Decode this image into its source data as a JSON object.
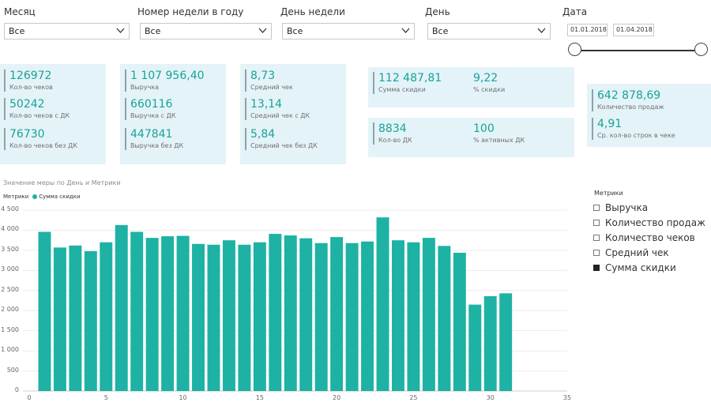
{
  "filters": {
    "month": {
      "label": "Месяц",
      "value": "Все"
    },
    "week": {
      "label": "Номер недели в году",
      "value": "Все"
    },
    "weekday": {
      "label": "День недели",
      "value": "Все"
    },
    "day": {
      "label": "День",
      "value": "Все"
    },
    "date": {
      "label": "Дата",
      "from": "01.01.2018",
      "to": "01.04.2018"
    }
  },
  "cards": {
    "checks": [
      {
        "value": "126972",
        "label": "Кол-во чеков"
      },
      {
        "value": "50242",
        "label": "Кол-во чеков с ДК"
      },
      {
        "value": "76730",
        "label": "Кол-во чеков без ДК"
      }
    ],
    "revenue": [
      {
        "value": "1 107 956,40",
        "label": "Выручка"
      },
      {
        "value": "660116",
        "label": "Выручка с ДК"
      },
      {
        "value": "447841",
        "label": "Выручка без ДК"
      }
    ],
    "avg_check": [
      {
        "value": "8,73",
        "label": "Средний чек"
      },
      {
        "value": "13,14",
        "label": "Средний чек с ДК"
      },
      {
        "value": "5,84",
        "label": "Средний чек без ДК"
      }
    ],
    "discount": [
      {
        "value": "112 487,81",
        "label": "Сумма скидки"
      },
      {
        "value": "9,22",
        "label": "% скидки"
      }
    ],
    "cards_dk": [
      {
        "value": "8834",
        "label": "Кол-во ДК"
      },
      {
        "value": "100",
        "label": "% активных ДК"
      }
    ],
    "sales": [
      {
        "value": "642 878,69",
        "label": "Количество продаж"
      },
      {
        "value": "4,91",
        "label": "Ср. кол-во строк в чеке"
      }
    ]
  },
  "chart": {
    "title": "Значение меры по День и Метрики",
    "legend_title": "Метрики",
    "legend_series": "Сумма скидки"
  },
  "metrics_legend": {
    "title": "Метрики",
    "items": [
      {
        "label": "Выручка",
        "checked": false
      },
      {
        "label": "Количество продаж",
        "checked": false
      },
      {
        "label": "Количество чеков",
        "checked": false
      },
      {
        "label": "Средний чек",
        "checked": false
      },
      {
        "label": "Сумма скидки",
        "checked": true
      }
    ]
  },
  "colors": {
    "accent": "#17a397",
    "bar": "#1db2a4",
    "card": "#e4f3f8"
  },
  "chart_data": {
    "type": "bar",
    "x": [
      1,
      2,
      3,
      4,
      5,
      6,
      7,
      8,
      9,
      10,
      11,
      12,
      13,
      14,
      15,
      16,
      17,
      18,
      19,
      20,
      21,
      22,
      23,
      24,
      25,
      26,
      27,
      28,
      29,
      30,
      31
    ],
    "series": [
      {
        "name": "Сумма скидки",
        "values": [
          3960,
          3570,
          3620,
          3480,
          3700,
          4130,
          3960,
          3810,
          3850,
          3860,
          3660,
          3640,
          3750,
          3640,
          3700,
          3910,
          3870,
          3800,
          3680,
          3830,
          3680,
          3720,
          4320,
          3750,
          3700,
          3810,
          3610,
          3440,
          2150,
          2360,
          2430
        ]
      }
    ],
    "ylim": [
      0,
      4500
    ],
    "yticks": [
      0,
      500,
      1000,
      1500,
      2000,
      2500,
      3000,
      3500,
      4000,
      4500
    ],
    "xlim": [
      0,
      35
    ],
    "xticks": [
      0,
      5,
      10,
      15,
      20,
      25,
      30,
      35
    ],
    "grid": true
  }
}
